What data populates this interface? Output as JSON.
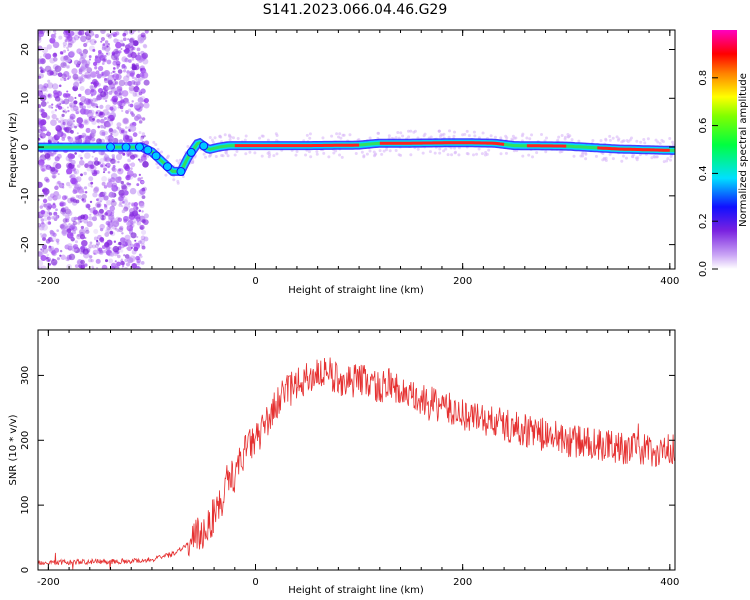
{
  "title": "S141.2023.066.04.46.G29",
  "chart_data": [
    {
      "type": "heatmap",
      "xlabel": "Height of straight line (km)",
      "ylabel": "Frequency (Hz)",
      "xlim": [
        -210,
        405
      ],
      "ylim": [
        -25,
        24
      ],
      "xticks": [
        -200,
        0,
        200,
        400
      ],
      "yticks": [
        -20,
        -10,
        0,
        10,
        20
      ],
      "colorbar": {
        "label": "Normalized spectral amplitude",
        "range": [
          0,
          1
        ],
        "ticks": [
          "0.0",
          "0.2",
          "0.4",
          "0.6",
          "0.8"
        ]
      },
      "ridge": {
        "x": [
          -210,
          -150,
          -110,
          -100,
          -90,
          -80,
          -72,
          -65,
          -55,
          -45,
          -35,
          -25,
          0,
          50,
          100,
          120,
          150,
          200,
          230,
          250,
          300,
          350,
          405
        ],
        "y": [
          0,
          0,
          0,
          -1,
          -3,
          -5,
          -5,
          -2,
          1,
          -0.5,
          0,
          0.3,
          0.3,
          0.3,
          0.4,
          0.8,
          0.8,
          0.9,
          0.8,
          0.3,
          0.2,
          -0.4,
          -0.7
        ]
      },
      "colors": {
        "low": "#8a2be2",
        "high": "#ff0000"
      }
    },
    {
      "type": "line",
      "xlabel": "Height of straight line (km)",
      "ylabel": "SNR (10 * v/v)",
      "xlim": [
        -210,
        405
      ],
      "ylim": [
        0,
        370
      ],
      "xticks": [
        -200,
        0,
        200,
        400
      ],
      "yticks": [
        0,
        100,
        200,
        300
      ],
      "series": [
        {
          "color": "#e53030",
          "x": [
            -210,
            -180,
            -150,
            -120,
            -100,
            -90,
            -80,
            -70,
            -60,
            -50,
            -40,
            -30,
            -20,
            -10,
            0,
            10,
            20,
            30,
            40,
            50,
            60,
            70,
            80,
            90,
            100,
            110,
            120,
            130,
            140,
            150,
            175,
            200,
            225,
            250,
            275,
            300,
            325,
            350,
            375,
            405
          ],
          "y": [
            12,
            12,
            13,
            14,
            16,
            20,
            25,
            35,
            45,
            60,
            85,
            115,
            150,
            185,
            200,
            225,
            255,
            275,
            285,
            295,
            305,
            300,
            295,
            290,
            295,
            290,
            280,
            290,
            275,
            265,
            255,
            240,
            230,
            220,
            210,
            200,
            195,
            190,
            185,
            185
          ]
        }
      ]
    }
  ]
}
